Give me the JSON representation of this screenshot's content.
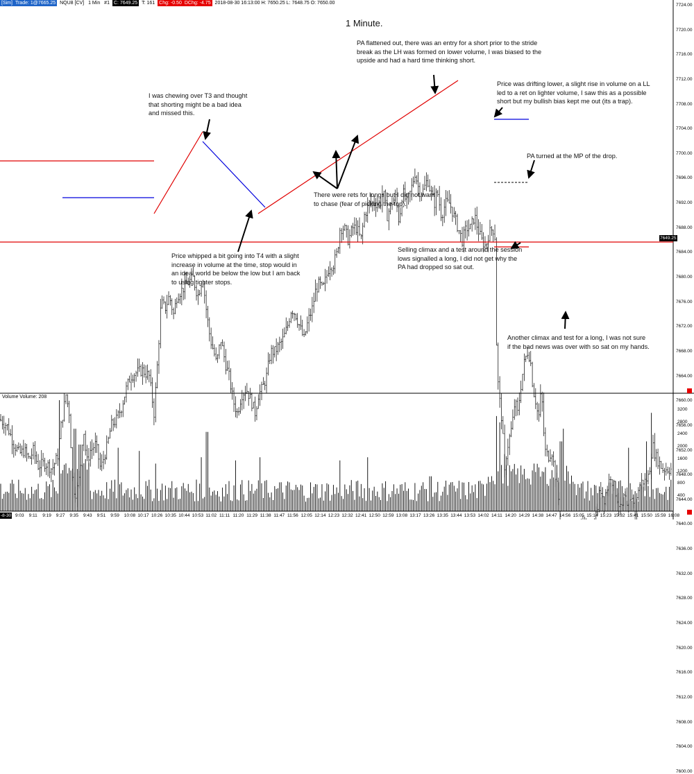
{
  "toolbar": {
    "sim": "[Sim]",
    "trade": "Trade: 1@7665.25",
    "symbol": "NQU8 [CV]",
    "interval": "1 Min",
    "num": "#1",
    "close": "C: 7649.25",
    "ticks": "T: 161",
    "chg": "Chg: -0.50",
    "dchg": "DChg: -4.75",
    "stats": "2018-08-30 16:13:00 H: 7650.25 L: 7648.75 O: 7650.00"
  },
  "title": "1 Minute.",
  "volume_label": "Volume  Volume: 208",
  "price_tag": "7649.25",
  "date_tag": "-8-30",
  "annotations": {
    "t3": "I was chewing over T3 and thought\nthat shorting might be a bad idea\nand missed this.",
    "pa_flat": "PA flattened out, there was an entry for a short prior to the stride\nbreak as the LH was formed on lower volume, I was biased to the\nupside and had a hard time thinking short.",
    "drifting": "Price was drifting lower, a slight rise in volume on a LL\nled to a ret on lighter volume, I saw this as a possible\nshort but my bullish bias kept me out (its a trap).",
    "mp": "PA turned at the MP of the drop.",
    "rets": "There were rets for longs but I did not want\nto chase (fear of picking the top).",
    "t4": "Price whipped a bit going into T4 with a slight\nincrease in volume at the time, stop would in\nan ideal world be below the low but I am back\nto using tighter stops.",
    "climax1": "Selling climax and a test around the session\nlows signalled a long, I did not get why the\nPA had dropped so sat out.",
    "climax2": "Another climax and test for a long, I was not sure\nif the bad news was over with so sat on my hands."
  },
  "price_axis": [
    "7724.00",
    "7720.00",
    "7716.00",
    "7712.00",
    "7708.00",
    "7704.00",
    "7700.00",
    "7696.00",
    "7692.00",
    "7688.00",
    "7684.00",
    "7680.00",
    "7676.00",
    "7672.00",
    "7668.00",
    "7664.00",
    "7660.00",
    "7656.00",
    "7652.00",
    "7648.00",
    "7644.00",
    "7640.00",
    "7636.00",
    "7632.00",
    "7628.00",
    "7624.00",
    "7620.00",
    "7616.00",
    "7612.00",
    "7608.00",
    "7604.00",
    "7600.00"
  ],
  "volume_axis": [
    "3200",
    "2800",
    "2400",
    "2000",
    "1600",
    "1200",
    "800",
    "400"
  ],
  "time_axis": [
    "9:03",
    "9:11",
    "9:19",
    "9:27",
    "9:35",
    "9:43",
    "9:51",
    "9:59",
    "10:08",
    "10:17",
    "10:26",
    "10:35",
    "10:44",
    "10:53",
    "11:02",
    "11:11",
    "11:20",
    "11:29",
    "11:38",
    "11:47",
    "11:56",
    "12:05",
    "12:14",
    "12:23",
    "12:32",
    "12:41",
    "12:50",
    "12:59",
    "13:08",
    "13:17",
    "13:26",
    "13:35",
    "13:44",
    "13:53",
    "14:02",
    "14:11",
    "14:20",
    "14:29",
    "14:38",
    "14:47",
    "14:56",
    "15:05",
    "15:14",
    "15:23",
    "15:32",
    "15:41",
    "15:50",
    "15:59",
    "16:08"
  ],
  "chart_data": {
    "type": "ohlc",
    "instrument": "NQU8",
    "interval": "1 Min",
    "close_path": [
      [
        0,
        7657
      ],
      [
        10,
        7656
      ],
      [
        20,
        7653
      ],
      [
        28,
        7651.5
      ],
      [
        35,
        7652
      ],
      [
        42,
        7650.5
      ],
      [
        48,
        7652
      ],
      [
        55,
        7649.5
      ],
      [
        65,
        7650
      ],
      [
        75,
        7649
      ],
      [
        83,
        7651
      ],
      [
        88,
        7656
      ],
      [
        95,
        7661
      ],
      [
        100,
        7658
      ],
      [
        105,
        7646
      ],
      [
        110,
        7645
      ],
      [
        115,
        7648
      ],
      [
        120,
        7656
      ],
      [
        125,
        7650
      ],
      [
        130,
        7652
      ],
      [
        138,
        7653
      ],
      [
        145,
        7649
      ],
      [
        150,
        7651
      ],
      [
        155,
        7653
      ],
      [
        160,
        7656
      ],
      [
        168,
        7657
      ],
      [
        175,
        7659
      ],
      [
        182,
        7662
      ],
      [
        188,
        7664
      ],
      [
        195,
        7664.5
      ],
      [
        205,
        7665
      ],
      [
        215,
        7664
      ],
      [
        222,
        7658
      ],
      [
        228,
        7668
      ],
      [
        232,
        7676
      ],
      [
        238,
        7675
      ],
      [
        244,
        7677
      ],
      [
        250,
        7674
      ],
      [
        255,
        7677
      ],
      [
        262,
        7678
      ],
      [
        270,
        7679
      ],
      [
        278,
        7680
      ],
      [
        285,
        7677
      ],
      [
        292,
        7680
      ],
      [
        298,
        7674
      ],
      [
        303,
        7670
      ],
      [
        308,
        7668
      ],
      [
        312,
        7666
      ],
      [
        318,
        7670
      ],
      [
        325,
        7666
      ],
      [
        330,
        7664
      ],
      [
        336,
        7660
      ],
      [
        342,
        7658
      ],
      [
        348,
        7661
      ],
      [
        355,
        7662
      ],
      [
        362,
        7660
      ],
      [
        368,
        7658
      ],
      [
        372,
        7661
      ],
      [
        378,
        7662
      ],
      [
        384,
        7664
      ],
      [
        390,
        7668
      ],
      [
        396,
        7668
      ],
      [
        402,
        7669
      ],
      [
        408,
        7670
      ],
      [
        414,
        7672
      ],
      [
        420,
        7675
      ],
      [
        426,
        7674
      ],
      [
        432,
        7672
      ],
      [
        438,
        7670
      ],
      [
        444,
        7673
      ],
      [
        450,
        7675
      ],
      [
        455,
        7678
      ],
      [
        460,
        7679
      ],
      [
        465,
        7678
      ],
      [
        470,
        7680
      ],
      [
        475,
        7682
      ],
      [
        480,
        7682
      ],
      [
        486,
        7684
      ],
      [
        490,
        7688
      ],
      [
        496,
        7688
      ],
      [
        502,
        7686
      ],
      [
        508,
        7688
      ],
      [
        514,
        7688
      ],
      [
        520,
        7686
      ],
      [
        525,
        7690
      ],
      [
        532,
        7692
      ],
      [
        540,
        7692
      ],
      [
        548,
        7692
      ],
      [
        552,
        7694
      ],
      [
        558,
        7690
      ],
      [
        564,
        7692
      ],
      [
        570,
        7693
      ],
      [
        575,
        7689
      ],
      [
        580,
        7694
      ],
      [
        586,
        7692
      ],
      [
        592,
        7694
      ],
      [
        598,
        7697
      ],
      [
        604,
        7694
      ],
      [
        610,
        7694
      ],
      [
        616,
        7696
      ],
      [
        620,
        7694
      ],
      [
        626,
        7692
      ],
      [
        630,
        7694
      ],
      [
        636,
        7690
      ],
      [
        642,
        7692
      ],
      [
        648,
        7692
      ],
      [
        654,
        7690
      ],
      [
        660,
        7688
      ],
      [
        666,
        7686
      ],
      [
        672,
        7688
      ],
      [
        678,
        7688
      ],
      [
        684,
        7690
      ],
      [
        688,
        7688
      ],
      [
        694,
        7686
      ],
      [
        700,
        7685
      ],
      [
        704,
        7687
      ],
      [
        710,
        7688
      ],
      [
        713,
        7687
      ],
      [
        716,
        7665
      ],
      [
        720,
        7660
      ],
      [
        724,
        7656
      ],
      [
        727,
        7648
      ],
      [
        730,
        7652
      ],
      [
        734,
        7654
      ],
      [
        738,
        7656
      ],
      [
        742,
        7660
      ],
      [
        746,
        7658
      ],
      [
        750,
        7662
      ],
      [
        755,
        7666
      ],
      [
        760,
        7668
      ],
      [
        764,
        7667
      ],
      [
        768,
        7662
      ],
      [
        772,
        7660
      ],
      [
        776,
        7657
      ],
      [
        780,
        7662
      ],
      [
        785,
        7652
      ],
      [
        790,
        7651
      ],
      [
        795,
        7652
      ],
      [
        800,
        7648
      ],
      [
        804,
        7645
      ],
      [
        808,
        7640
      ],
      [
        812,
        7636
      ],
      [
        816,
        7628
      ],
      [
        820,
        7634
      ],
      [
        825,
        7632
      ],
      [
        830,
        7636
      ],
      [
        835,
        7638
      ],
      [
        840,
        7640
      ],
      [
        845,
        7638
      ],
      [
        850,
        7636
      ],
      [
        855,
        7640
      ],
      [
        860,
        7642
      ],
      [
        865,
        7646
      ],
      [
        870,
        7644
      ],
      [
        875,
        7646
      ],
      [
        880,
        7648
      ],
      [
        885,
        7646
      ],
      [
        890,
        7644
      ],
      [
        895,
        7642
      ],
      [
        900,
        7645
      ],
      [
        905,
        7641
      ],
      [
        910,
        7645
      ],
      [
        915,
        7642
      ],
      [
        920,
        7646
      ],
      [
        925,
        7647
      ],
      [
        930,
        7647
      ],
      [
        935,
        7648
      ],
      [
        940,
        7653
      ],
      [
        945,
        7651
      ],
      [
        950,
        7650
      ],
      [
        955,
        7649
      ],
      [
        965,
        7649
      ]
    ],
    "horizontal_levels": [
      {
        "price": 7674.5,
        "color": "red",
        "from": "start",
        "to": "10:26"
      },
      {
        "price": 7663,
        "color": "blue",
        "from": "9:35",
        "to": "10:26"
      },
      {
        "price": 7648,
        "color": "red",
        "from": "start",
        "to": "end"
      },
      {
        "price": 7688.5,
        "color": "blue",
        "from": "14:11",
        "to": "14:47"
      },
      {
        "price": 7666.5,
        "color": "black-dashed",
        "from": "14:11",
        "to": "14:38"
      },
      {
        "price": 7647,
        "color": "red",
        "from": "14:11",
        "to": "14:38"
      }
    ],
    "trendlines": [
      {
        "color": "red",
        "from": [
          "10:26",
          7658
        ],
        "to": [
          "11:02",
          7685
        ]
      },
      {
        "color": "blue",
        "from": [
          "11:02",
          7680
        ],
        "to": [
          "11:38",
          7659
        ]
      },
      {
        "color": "red",
        "from": [
          "11:38",
          7658
        ],
        "to": [
          "13:53",
          7701
        ]
      }
    ],
    "volume_max_approx": 3500,
    "volume_last": 208
  },
  "colors": {
    "red": "#e00000",
    "blue": "#0000dd",
    "bars": "#000000",
    "toolbar_blue": "#1e64c8"
  }
}
